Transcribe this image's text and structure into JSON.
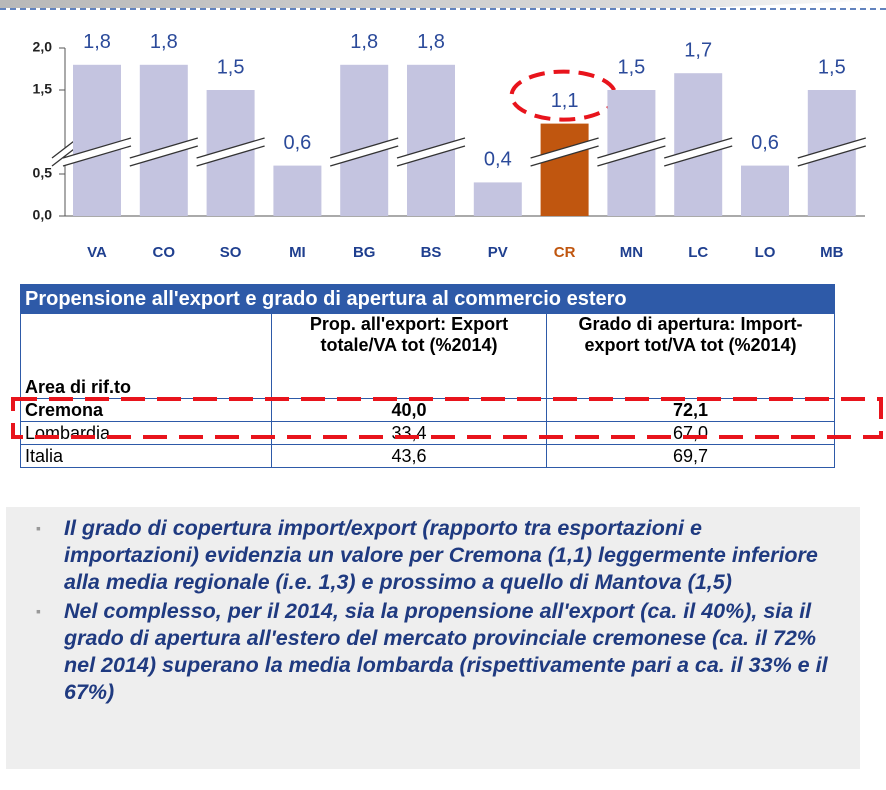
{
  "chart_data": {
    "type": "bar",
    "categories": [
      "VA",
      "CO",
      "SO",
      "MI",
      "BG",
      "BS",
      "PV",
      "CR",
      "MN",
      "LC",
      "LO",
      "MB"
    ],
    "values": [
      1.8,
      1.8,
      1.5,
      0.6,
      1.8,
      1.8,
      0.4,
      1.1,
      1.5,
      1.7,
      0.6,
      1.5
    ],
    "value_labels": [
      "1,8",
      "1,8",
      "1,5",
      "0,6",
      "1,8",
      "1,8",
      "0,4",
      "1,1",
      "1,5",
      "1,7",
      "0,6",
      "1,5"
    ],
    "colors": [
      "#c4c4e0",
      "#c4c4e0",
      "#c4c4e0",
      "#c4c4e0",
      "#c4c4e0",
      "#c4c4e0",
      "#c4c4e0",
      "#c0560f",
      "#c4c4e0",
      "#c4c4e0",
      "#c4c4e0",
      "#c4c4e0"
    ],
    "ylim": [
      0,
      2
    ],
    "yticks": [
      {
        "value": 0,
        "label": "0,0"
      },
      {
        "value": 0.5,
        "label": "0,5"
      },
      {
        "value": 1.5,
        "label": "1,5"
      },
      {
        "value": 2,
        "label": "2,0"
      }
    ],
    "broken_axis": true
  },
  "table": {
    "title": "Propensione all'export e grado di apertura al commercio estero",
    "header": [
      "Area di rif.to",
      "Prop. all'export: Export totale/VA tot (%2014)",
      "Grado di apertura: Import-export tot/VA tot (%2014)"
    ],
    "rows": [
      [
        "Cremona",
        "40,0",
        "72,1"
      ],
      [
        "Lombardia",
        "33,4",
        "67,0"
      ],
      [
        "Italia",
        "43,6",
        "69,7"
      ]
    ]
  },
  "bullets": [
    "Il grado di copertura import/export (rapporto tra esportazioni e importazioni) evidenzia un valore per Cremona (1,1) leggermente inferiore alla media regionale (i.e. 1,3) e prossimo a quello di Mantova (1,5)",
    "Nel complesso, per il 2014, sia la propensione all'export (ca. il 40%), sia il grado di apertura all'estero del mercato provinciale cremonese (ca. il 72% nel 2014) superano la media lombarda (rispettivamente pari a ca. il 33% e il 67%)"
  ]
}
